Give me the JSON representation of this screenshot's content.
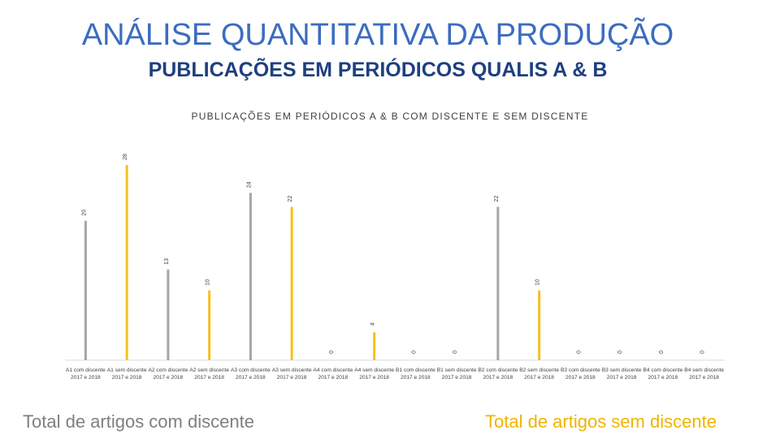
{
  "title": "ANÁLISE QUANTITATIVA DA PRODUÇÃO",
  "subtitle": "PUBLICAÇÕES EM PERIÓDICOS QUALIS A & B",
  "chart_data": {
    "type": "bar",
    "title": "PUBLICAÇÕES EM PERIÓDICOS A & B COM DISCENTE E SEM DISCENTE",
    "categories": [
      "A1 com discente 2017 e 2018",
      "A1 sem discente 2017 e 2018",
      "A2 com discente 2017 e 2018",
      "A2 sem discente 2017 e 2018",
      "A3 com discente 2017 e 2018",
      "A3 sem discente 2017 e 2018",
      "A4 com discente 2017 e 2018",
      "A4 sem discente 2017 e 2018",
      "B1 com discente 2017 e 2018",
      "B1 sem discente 2017 e 2018",
      "B2 com discente 2017 e 2018",
      "B2 sem discente 2017 e 2018",
      "B3 com discente 2017 e 2018",
      "B3 sem discente 2017 e 2018",
      "B4 com discente 2017 e 2018",
      "B4 sem discente 2017 e 2018"
    ],
    "series": [
      {
        "name": "Total de artigos com discente",
        "color": "#a5a5a5",
        "values": [
          20,
          null,
          13,
          null,
          24,
          null,
          0,
          null,
          0,
          null,
          22,
          null,
          0,
          null,
          0,
          null
        ]
      },
      {
        "name": "Total de artigos sem discente",
        "color": "#f5c01e",
        "values": [
          null,
          28,
          null,
          10,
          null,
          22,
          null,
          4,
          null,
          0,
          null,
          10,
          null,
          0,
          null,
          0
        ]
      }
    ],
    "ylim": [
      0,
      28
    ]
  }
}
